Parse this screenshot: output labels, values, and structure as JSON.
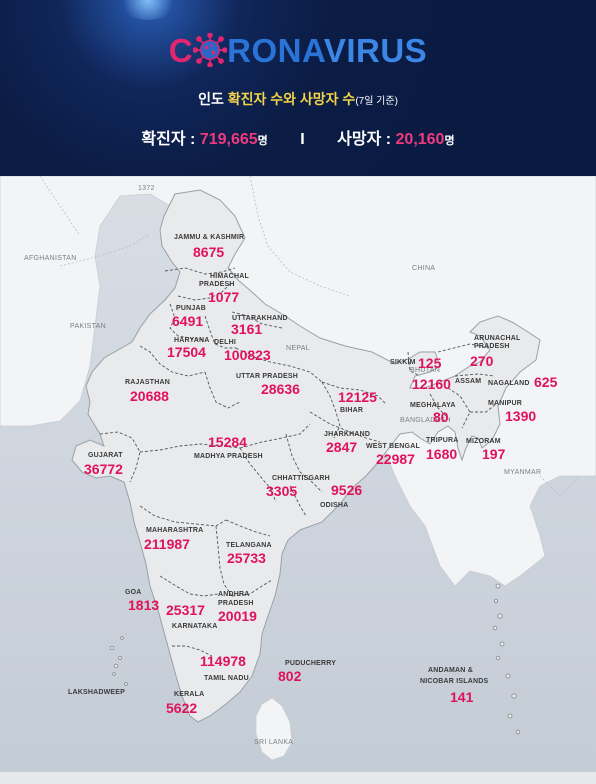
{
  "header": {
    "logo_c": "C",
    "logo_rona": "RONA",
    "logo_virus": "VIRUS",
    "subtitle_country": "인도",
    "subtitle_main": "확진자 수와 사망자 수",
    "subtitle_note": "(7일 기준)",
    "confirmed_label": "확진자 : ",
    "confirmed_value": "719,665",
    "confirmed_unit": "명",
    "separator": "I",
    "deaths_label": "사망자 : ",
    "deaths_value": "20,160",
    "deaths_unit": "명"
  },
  "map": {
    "scale_label": "1372",
    "countries": {
      "afghanistan": "AFGHANISTAN",
      "pakistan": "PAKISTAN",
      "china": "CHINA",
      "nepal": "NEPAL",
      "bhutan": "BHUTAN",
      "bangladesh": "BANGLADESH",
      "myanmar": "MYANMAR",
      "sri_lanka": "SRI LANKA"
    },
    "states": [
      {
        "name": "JAMMU & KASHMIR",
        "value": "8675"
      },
      {
        "name": "HIMACHAL PRADESH",
        "name1": "HIMACHAL",
        "name2": "PRADESH",
        "value": "1077"
      },
      {
        "name": "PUNJAB",
        "value": "6491"
      },
      {
        "name": "UTTARAKHAND",
        "value": "3161"
      },
      {
        "name": "HARYANA",
        "value": "17504"
      },
      {
        "name": "DELHI",
        "value": "100823"
      },
      {
        "name": "RAJASTHAN",
        "value": "20688"
      },
      {
        "name": "UTTAR PRADESH",
        "value": "28636"
      },
      {
        "name": "BIHAR",
        "value": "12125"
      },
      {
        "name": "SIKKIM",
        "value": "125"
      },
      {
        "name": "ARUNACHAL PRADESH",
        "name1": "ARUNACHAL",
        "name2": "PRADESH",
        "value": "270"
      },
      {
        "name": "ASSAM",
        "value": "12160"
      },
      {
        "name": "NAGALAND",
        "value": "625"
      },
      {
        "name": "MEGHALAYA",
        "value": "80"
      },
      {
        "name": "MANIPUR",
        "value": "1390"
      },
      {
        "name": "GUJARAT",
        "value": "36772"
      },
      {
        "name": "MADHYA PRADESH",
        "value": "15284"
      },
      {
        "name": "JHARKHAND",
        "value": "2847"
      },
      {
        "name": "WEST BENGAL",
        "value": "22987"
      },
      {
        "name": "TRIPURA",
        "value": "1680"
      },
      {
        "name": "MIZORAM",
        "value": "197"
      },
      {
        "name": "CHHATTISGARH",
        "value": "3305"
      },
      {
        "name": "ODISHA",
        "value": "9526"
      },
      {
        "name": "MAHARASHTRA",
        "value": "211987"
      },
      {
        "name": "TELANGANA",
        "value": "25733"
      },
      {
        "name": "GOA",
        "value": "1813"
      },
      {
        "name": "KARNATAKA",
        "value": "25317"
      },
      {
        "name": "ANDHRA PRADESH",
        "name1": "ANDHRA",
        "name2": "PRADESH",
        "value": "20019"
      },
      {
        "name": "TAMIL NADU",
        "value": "114978"
      },
      {
        "name": "PUDUCHERRY",
        "value": "802"
      },
      {
        "name": "KERALA",
        "value": "5622"
      },
      {
        "name": "LAKSHADWEEP",
        "value": ""
      },
      {
        "name": "ANDAMAN & NICOBAR ISLANDS",
        "name1": "ANDAMAN &",
        "name2": "NICOBAR ISLANDS",
        "value": "141"
      }
    ]
  },
  "colors": {
    "header_bg": "#0b1c45",
    "accent_pink": "#e0125a",
    "accent_yellow": "#f2d34a",
    "logo_blue": "#2a74d8",
    "land": "#f3f4f5",
    "india": "#e9eaec",
    "sea": "#cfd6df"
  },
  "icons": {
    "logo_virus": "coronavirus-icon"
  }
}
